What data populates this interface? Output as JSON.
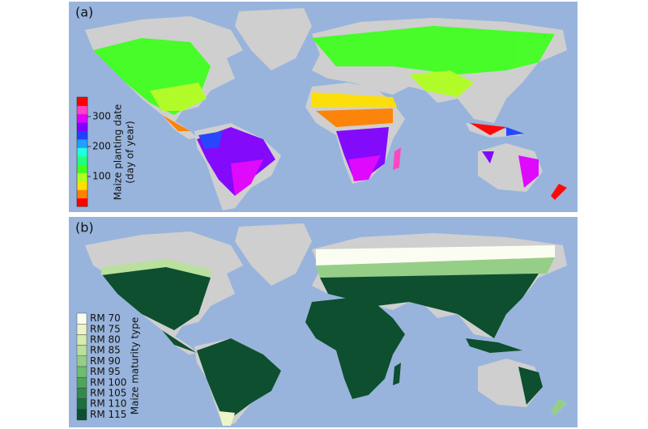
{
  "panels": [
    {
      "label": "(a)",
      "colorbar": {
        "title": [
          "Maize planting date",
          "(day of year)"
        ],
        "range": [
          0,
          365
        ],
        "ticks": [
          100,
          200,
          300
        ],
        "colors": [
          "#ff0000",
          "#ff8000",
          "#ffe000",
          "#b0ff20",
          "#40ff20",
          "#20ff80",
          "#20ffe0",
          "#20a0ff",
          "#2040ff",
          "#8000ff",
          "#e000ff",
          "#ff40c0",
          "#ff0000"
        ]
      }
    },
    {
      "label": "(b)",
      "legend": {
        "title": "Maize maturity type",
        "entries": [
          {
            "label": "RM 70",
            "color": "#fcfdf2"
          },
          {
            "label": "RM 75",
            "color": "#ecf5c8"
          },
          {
            "label": "RM 80",
            "color": "#d6ecae"
          },
          {
            "label": "RM 85",
            "color": "#b9e09c"
          },
          {
            "label": "RM 90",
            "color": "#95cf87"
          },
          {
            "label": "RM 95",
            "color": "#6fbb6f"
          },
          {
            "label": "RM 100",
            "color": "#4ea45b"
          },
          {
            "label": "RM 105",
            "color": "#328a4a"
          },
          {
            "label": "RM 110",
            "color": "#1d6e3d"
          },
          {
            "label": "RM 115",
            "color": "#0d4f2f"
          }
        ]
      }
    }
  ]
}
